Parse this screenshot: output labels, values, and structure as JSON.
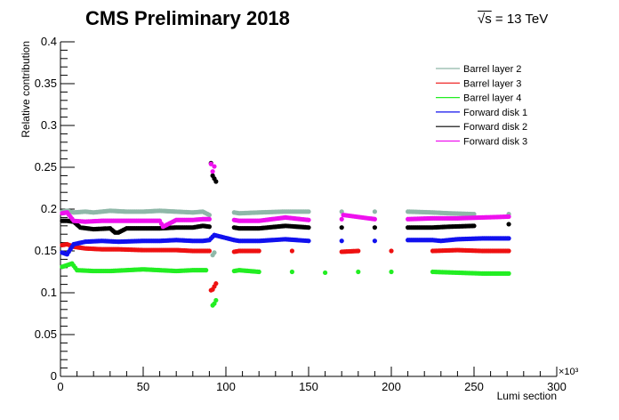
{
  "header": {
    "title": "CMS Preliminary 2018",
    "energy_symbol": "√s",
    "energy_value": " = 13 TeV"
  },
  "chart_data": {
    "type": "scatter",
    "title": "CMS Preliminary 2018",
    "xlabel": "Lumi section",
    "ylabel": "Relative contribution",
    "x_multiplier": "×10³",
    "xlim": [
      0,
      300
    ],
    "ylim": [
      0,
      0.4
    ],
    "x_ticks": [
      0,
      50,
      100,
      150,
      200,
      250,
      300
    ],
    "x_tick_labels": [
      "0",
      "50",
      "100",
      "150",
      "200",
      "250",
      "300"
    ],
    "y_ticks": [
      0,
      0.05,
      0.1,
      0.15,
      0.2,
      0.25,
      0.3,
      0.35,
      0.4
    ],
    "y_tick_labels": [
      "0",
      "0.05",
      "0.1",
      "0.15",
      "0.2",
      "0.25",
      "0.3",
      "0.35",
      "0.4"
    ],
    "grid": false,
    "legend_position": "top-right",
    "series": [
      {
        "name": "Barrel layer 2",
        "color": "#8fb8a8",
        "points": [
          [
            1,
            0.197
          ],
          [
            4,
            0.198
          ],
          [
            8,
            0.196
          ],
          [
            15,
            0.197
          ],
          [
            20,
            0.196
          ],
          [
            30,
            0.198
          ],
          [
            40,
            0.197
          ],
          [
            50,
            0.197
          ],
          [
            60,
            0.198
          ],
          [
            70,
            0.197
          ],
          [
            80,
            0.196
          ],
          [
            86,
            0.197
          ],
          [
            90,
            0.193
          ],
          [
            92,
            0.145
          ],
          [
            93,
            0.148
          ],
          [
            105,
            0.196
          ],
          [
            108,
            0.195
          ],
          [
            120,
            0.196
          ],
          [
            135,
            0.197
          ],
          [
            150,
            0.197
          ],
          [
            170,
            0.197
          ],
          [
            190,
            0.197
          ],
          [
            210,
            0.197
          ],
          [
            225,
            0.196
          ],
          [
            235,
            0.195
          ],
          [
            250,
            0.194
          ],
          [
            271,
            0.194
          ]
        ]
      },
      {
        "name": "Barrel layer 3",
        "color": "#ee1111",
        "points": [
          [
            1,
            0.157
          ],
          [
            4,
            0.158
          ],
          [
            8,
            0.155
          ],
          [
            15,
            0.153
          ],
          [
            25,
            0.152
          ],
          [
            35,
            0.152
          ],
          [
            50,
            0.151
          ],
          [
            60,
            0.151
          ],
          [
            70,
            0.151
          ],
          [
            80,
            0.15
          ],
          [
            86,
            0.15
          ],
          [
            90,
            0.15
          ],
          [
            91,
            0.103
          ],
          [
            92,
            0.104
          ],
          [
            94,
            0.111
          ],
          [
            105,
            0.149
          ],
          [
            108,
            0.15
          ],
          [
            120,
            0.15
          ],
          [
            140,
            0.15
          ],
          [
            170,
            0.149
          ],
          [
            180,
            0.15
          ],
          [
            200,
            0.15
          ],
          [
            225,
            0.15
          ],
          [
            240,
            0.151
          ],
          [
            255,
            0.15
          ],
          [
            271,
            0.15
          ]
        ]
      },
      {
        "name": "Barrel layer 4",
        "color": "#22ee22",
        "points": [
          [
            1,
            0.131
          ],
          [
            4,
            0.133
          ],
          [
            7,
            0.135
          ],
          [
            10,
            0.127
          ],
          [
            20,
            0.126
          ],
          [
            30,
            0.126
          ],
          [
            40,
            0.127
          ],
          [
            50,
            0.128
          ],
          [
            60,
            0.127
          ],
          [
            70,
            0.126
          ],
          [
            80,
            0.127
          ],
          [
            86,
            0.127
          ],
          [
            88,
            0.127
          ],
          [
            92,
            0.085
          ],
          [
            93,
            0.087
          ],
          [
            94,
            0.091
          ],
          [
            105,
            0.126
          ],
          [
            108,
            0.127
          ],
          [
            120,
            0.125
          ],
          [
            140,
            0.125
          ],
          [
            160,
            0.124
          ],
          [
            180,
            0.125
          ],
          [
            200,
            0.125
          ],
          [
            225,
            0.125
          ],
          [
            240,
            0.124
          ],
          [
            255,
            0.123
          ],
          [
            271,
            0.123
          ]
        ]
      },
      {
        "name": "Forward disk 1",
        "color": "#1111ee",
        "points": [
          [
            1,
            0.148
          ],
          [
            4,
            0.146
          ],
          [
            8,
            0.158
          ],
          [
            15,
            0.161
          ],
          [
            25,
            0.162
          ],
          [
            35,
            0.161
          ],
          [
            50,
            0.162
          ],
          [
            60,
            0.162
          ],
          [
            70,
            0.163
          ],
          [
            80,
            0.162
          ],
          [
            86,
            0.162
          ],
          [
            90,
            0.163
          ],
          [
            92,
            0.167
          ],
          [
            93,
            0.169
          ],
          [
            105,
            0.163
          ],
          [
            108,
            0.162
          ],
          [
            120,
            0.162
          ],
          [
            136,
            0.164
          ],
          [
            150,
            0.162
          ],
          [
            170,
            0.162
          ],
          [
            190,
            0.162
          ],
          [
            210,
            0.163
          ],
          [
            225,
            0.163
          ],
          [
            230,
            0.162
          ],
          [
            240,
            0.164
          ],
          [
            255,
            0.165
          ],
          [
            271,
            0.165
          ]
        ]
      },
      {
        "name": "Forward disk 2",
        "color": "#000000",
        "points": [
          [
            1,
            0.186
          ],
          [
            4,
            0.186
          ],
          [
            8,
            0.185
          ],
          [
            12,
            0.178
          ],
          [
            20,
            0.176
          ],
          [
            30,
            0.177
          ],
          [
            33,
            0.172
          ],
          [
            35,
            0.172
          ],
          [
            40,
            0.177
          ],
          [
            50,
            0.177
          ],
          [
            60,
            0.177
          ],
          [
            70,
            0.178
          ],
          [
            80,
            0.178
          ],
          [
            86,
            0.18
          ],
          [
            90,
            0.179
          ],
          [
            91,
            0.255
          ],
          [
            92,
            0.24
          ],
          [
            94,
            0.233
          ],
          [
            105,
            0.178
          ],
          [
            108,
            0.177
          ],
          [
            120,
            0.177
          ],
          [
            136,
            0.18
          ],
          [
            150,
            0.178
          ],
          [
            170,
            0.178
          ],
          [
            190,
            0.178
          ],
          [
            210,
            0.178
          ],
          [
            225,
            0.178
          ],
          [
            235,
            0.179
          ],
          [
            250,
            0.18
          ],
          [
            271,
            0.182
          ]
        ]
      },
      {
        "name": "Forward disk 3",
        "color": "#ee11ee",
        "points": [
          [
            1,
            0.195
          ],
          [
            4,
            0.196
          ],
          [
            8,
            0.186
          ],
          [
            15,
            0.185
          ],
          [
            25,
            0.186
          ],
          [
            35,
            0.186
          ],
          [
            50,
            0.186
          ],
          [
            60,
            0.186
          ],
          [
            62,
            0.179
          ],
          [
            70,
            0.187
          ],
          [
            80,
            0.187
          ],
          [
            86,
            0.188
          ],
          [
            90,
            0.188
          ],
          [
            91,
            0.254
          ],
          [
            92,
            0.245
          ],
          [
            93,
            0.251
          ],
          [
            105,
            0.187
          ],
          [
            108,
            0.186
          ],
          [
            120,
            0.186
          ],
          [
            136,
            0.19
          ],
          [
            150,
            0.187
          ],
          [
            170,
            0.188
          ],
          [
            171,
            0.193
          ],
          [
            190,
            0.188
          ],
          [
            210,
            0.188
          ],
          [
            225,
            0.189
          ],
          [
            240,
            0.189
          ],
          [
            255,
            0.19
          ],
          [
            271,
            0.191
          ]
        ]
      }
    ]
  }
}
